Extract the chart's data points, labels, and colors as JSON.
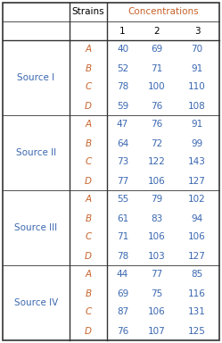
{
  "sources": [
    "Source I",
    "Source II",
    "Source III",
    "Source IV"
  ],
  "strains": [
    "A",
    "B",
    "C",
    "D"
  ],
  "data": {
    "Source I": {
      "A": [
        40,
        69,
        70
      ],
      "B": [
        52,
        71,
        91
      ],
      "C": [
        78,
        100,
        110
      ],
      "D": [
        59,
        76,
        108
      ]
    },
    "Source II": {
      "A": [
        47,
        76,
        91
      ],
      "B": [
        64,
        72,
        99
      ],
      "C": [
        73,
        122,
        143
      ],
      "D": [
        77,
        106,
        127
      ]
    },
    "Source III": {
      "A": [
        55,
        79,
        102
      ],
      "B": [
        61,
        83,
        94
      ],
      "C": [
        71,
        106,
        106
      ],
      "D": [
        78,
        103,
        127
      ]
    },
    "Source IV": {
      "A": [
        44,
        77,
        85
      ],
      "B": [
        69,
        75,
        116
      ],
      "C": [
        87,
        106,
        131
      ],
      "D": [
        76,
        107,
        125
      ]
    }
  },
  "source_color": "#3a67b0",
  "strain_color": "#c8622a",
  "value_color": "#3a67b0",
  "header_color": "#000000",
  "conc_header_color": "#c8622a",
  "bg_color": "#ffffff",
  "border_color": "#333333",
  "figsize": [
    2.49,
    3.84
  ],
  "dpi": 100
}
